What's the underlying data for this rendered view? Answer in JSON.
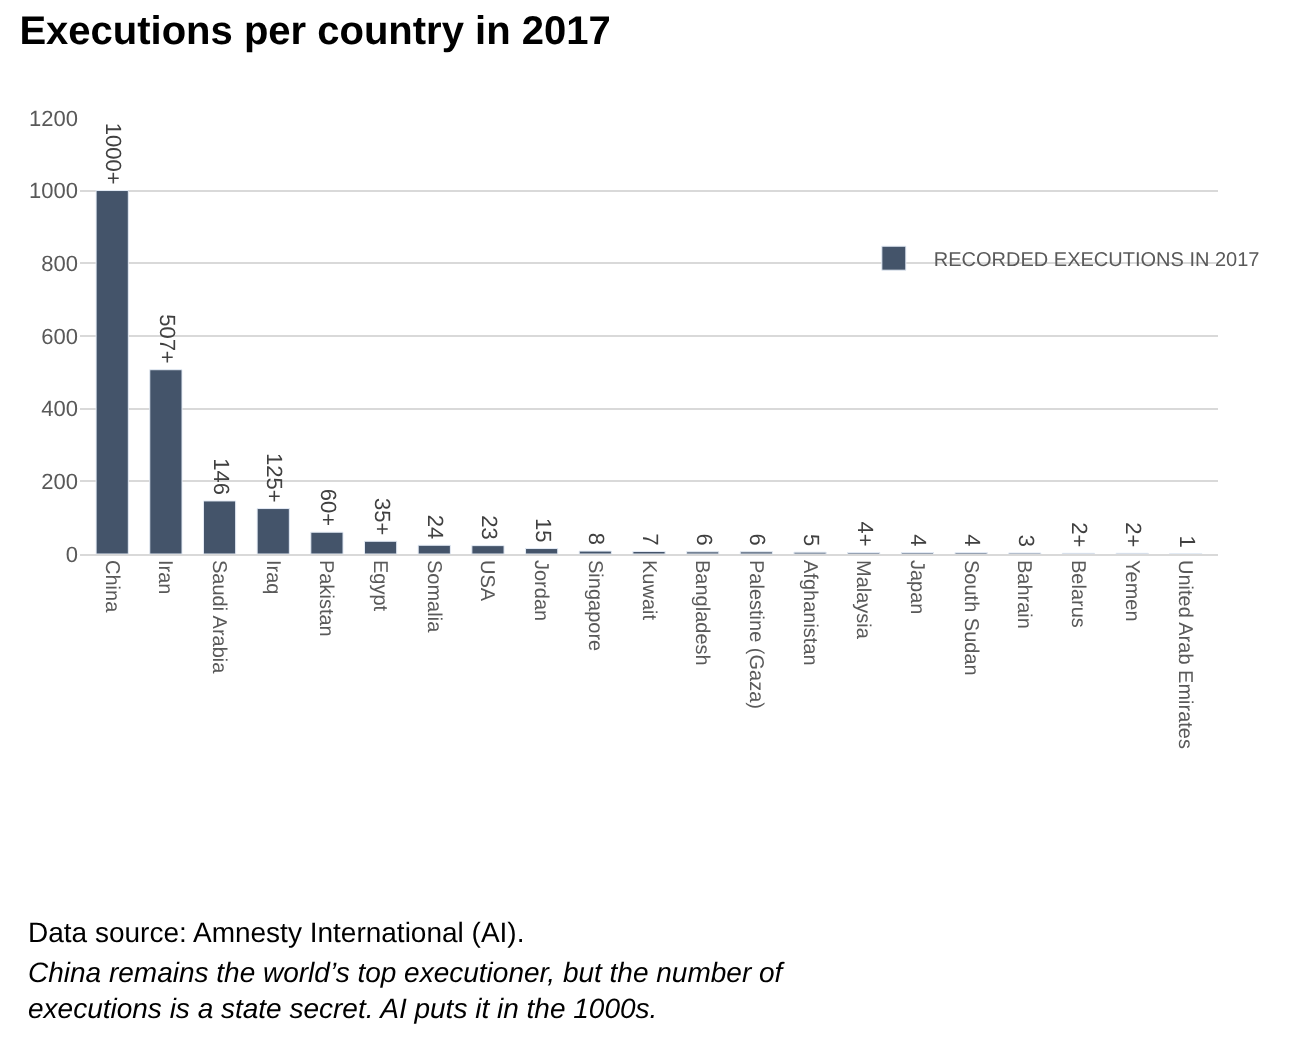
{
  "chart_data": {
    "type": "bar",
    "title": "Executions per country in 2017",
    "categories": [
      "China",
      "Iran",
      "Saudi Arabia",
      "Iraq",
      "Pakistan",
      "Egypt",
      "Somalia",
      "USA",
      "Jordan",
      "Singapore",
      "Kuwait",
      "Bangladesh",
      "Palestine (Gaza)",
      "Afghanistan",
      "Malaysia",
      "Japan",
      "South Sudan",
      "Bahrain",
      "Belarus",
      "Yemen",
      "United Arab Emirates"
    ],
    "series": [
      {
        "name": "RECORDED EXECUTIONS IN 2017",
        "color": "#44546a",
        "values": [
          1000,
          507,
          146,
          125,
          60,
          35,
          24,
          23,
          15,
          8,
          7,
          6,
          6,
          5,
          4,
          4,
          4,
          3,
          2,
          2,
          1
        ],
        "value_labels": [
          "1000+",
          "507+",
          "146",
          "125+",
          "60+",
          "35+",
          "24",
          "23",
          "15",
          "8",
          "7",
          "6",
          "6",
          "5",
          "4+",
          "4",
          "4",
          "3",
          "2+",
          "2+",
          "1"
        ]
      }
    ],
    "ylim": [
      0,
      1200
    ],
    "yticks": [
      0,
      200,
      400,
      600,
      800,
      1000,
      1200
    ],
    "grid": "y",
    "legend": "top right",
    "annotations": [
      "Data source: Amnesty International (AI).",
      "China remains the world’s top executioner, but the number of executions is a state secret. AI puts it in the 1000s."
    ]
  }
}
